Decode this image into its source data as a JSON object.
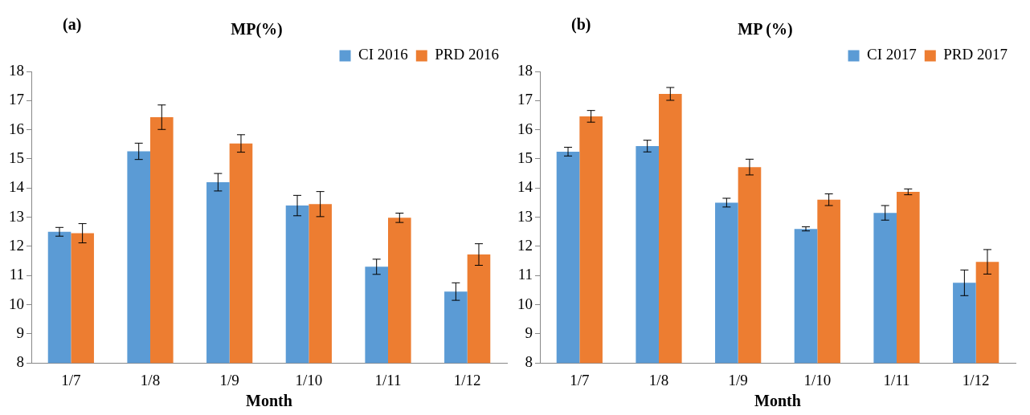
{
  "chart_data": [
    {
      "type": "bar",
      "title": "MP(%)",
      "xlabel": "Month",
      "annotations": [
        "(a)"
      ],
      "categories": [
        "1/7",
        "1/8",
        "1/9",
        "1/10",
        "1/11",
        "1/12"
      ],
      "series": [
        {
          "name": "CI 2016",
          "color": "#5b9bd5",
          "values": [
            12.5,
            15.26,
            14.2,
            13.4,
            11.3,
            10.45
          ],
          "errors": [
            0.15,
            0.28,
            0.3,
            0.35,
            0.26,
            0.3
          ]
        },
        {
          "name": "PRD 2016",
          "color": "#ed7d31",
          "values": [
            12.45,
            16.43,
            15.53,
            13.45,
            12.98,
            11.72
          ],
          "errors": [
            0.33,
            0.42,
            0.3,
            0.43,
            0.16,
            0.37
          ]
        }
      ],
      "ylim": [
        8,
        18
      ],
      "yticks": [
        8,
        9,
        10,
        11,
        12,
        13,
        14,
        15,
        16,
        17,
        18
      ],
      "grid": false,
      "legend": "top right"
    },
    {
      "type": "bar",
      "title": "MP (%)",
      "xlabel": "Month",
      "annotations": [
        "(b)"
      ],
      "categories": [
        "1/7",
        "1/8",
        "1/9",
        "1/10",
        "1/11",
        "1/12"
      ],
      "series": [
        {
          "name": "CI 2017",
          "color": "#5b9bd5",
          "values": [
            15.25,
            15.44,
            13.5,
            12.6,
            13.15,
            10.75
          ],
          "errors": [
            0.15,
            0.2,
            0.15,
            0.07,
            0.25,
            0.44
          ]
        },
        {
          "name": "PRD 2017",
          "color": "#ed7d31",
          "values": [
            16.46,
            17.23,
            14.72,
            13.6,
            13.87,
            11.47
          ],
          "errors": [
            0.2,
            0.22,
            0.27,
            0.2,
            0.1,
            0.42
          ]
        }
      ],
      "ylim": [
        8,
        18
      ],
      "yticks": [
        8,
        9,
        10,
        11,
        12,
        13,
        14,
        15,
        16,
        17,
        18
      ],
      "grid": false,
      "legend": "top right"
    }
  ]
}
